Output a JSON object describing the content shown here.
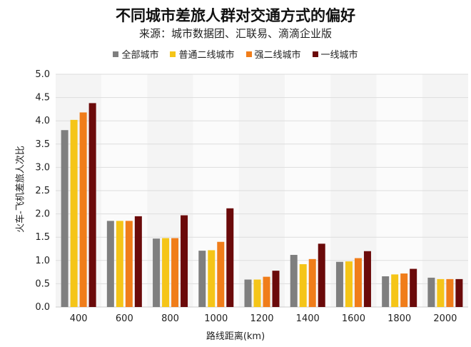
{
  "chart_data": {
    "type": "bar",
    "title": "不同城市差旅人群对交通方式的偏好",
    "subtitle": "来源：城市数据团、汇联易、滴滴企业版",
    "xlabel": "路线距离(km)",
    "ylabel": "火车-飞机差旅人次比",
    "ylim": [
      0,
      5
    ],
    "yticks": [
      "0.0",
      "0.5",
      "1.0",
      "1.5",
      "2.0",
      "2.5",
      "3.0",
      "3.5",
      "4.0",
      "4.5",
      "5.0"
    ],
    "grid": true,
    "legend_position": "top",
    "categories": [
      "400",
      "600",
      "800",
      "1000",
      "1200",
      "1400",
      "1600",
      "1800",
      "2000"
    ],
    "series": [
      {
        "name": "全部城市",
        "color": "#7f7f7f",
        "values": [
          3.8,
          1.85,
          1.47,
          1.21,
          0.59,
          1.12,
          0.97,
          0.66,
          0.63
        ]
      },
      {
        "name": "普通二线城市",
        "color": "#f5c518",
        "values": [
          4.02,
          1.85,
          1.48,
          1.22,
          0.59,
          0.92,
          0.98,
          0.7,
          0.6
        ]
      },
      {
        "name": "强二线城市",
        "color": "#f07d1a",
        "values": [
          4.18,
          1.85,
          1.48,
          1.4,
          0.65,
          1.03,
          1.05,
          0.72,
          0.6
        ]
      },
      {
        "name": "一线城市",
        "color": "#6b0a0a",
        "values": [
          4.38,
          1.95,
          1.97,
          2.12,
          0.78,
          1.36,
          1.2,
          0.82,
          0.6
        ]
      }
    ]
  }
}
